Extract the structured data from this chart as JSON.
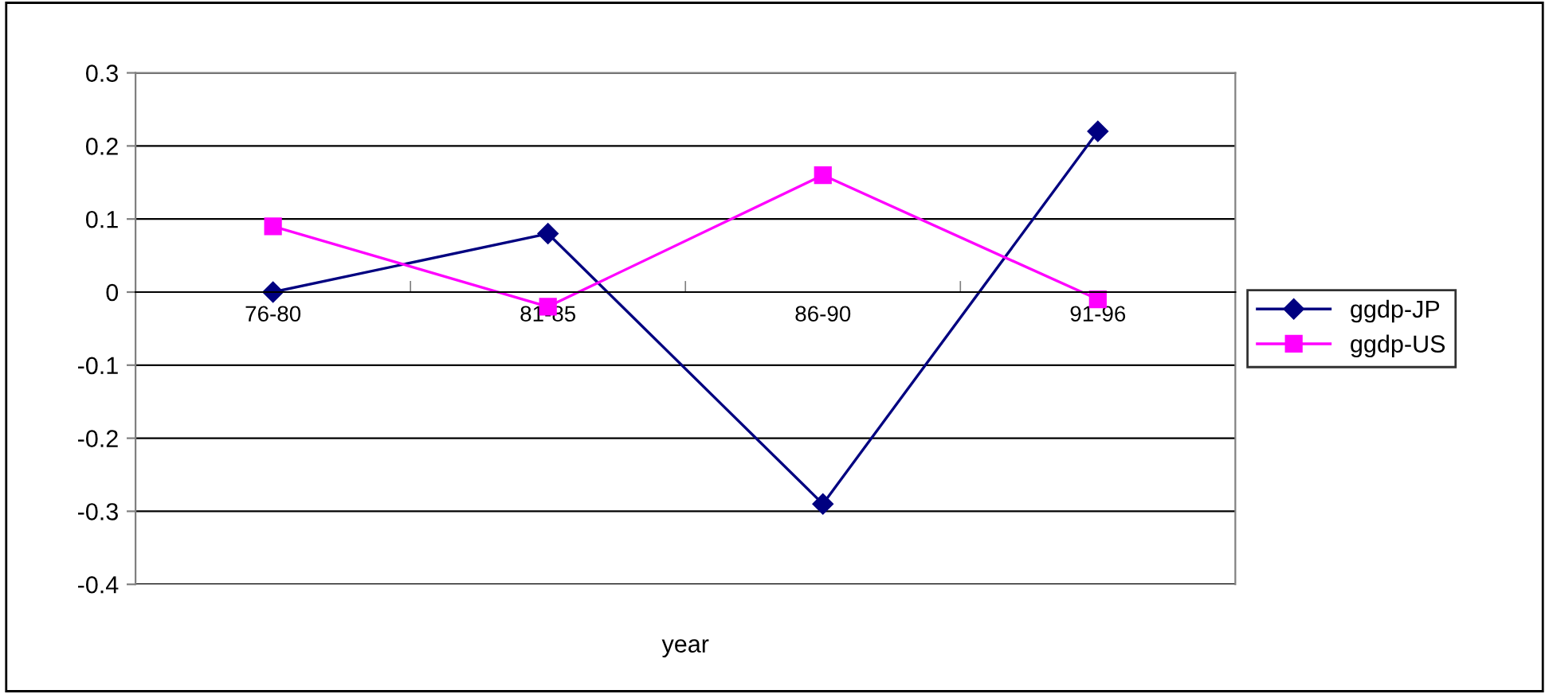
{
  "chart_data": {
    "type": "line",
    "xlabel": "year",
    "categories": [
      "76-80",
      "81-85",
      "86-90",
      "91-96"
    ],
    "series": [
      {
        "name": "ggdp-JP",
        "color": "#000080",
        "marker": "diamond",
        "values": [
          0,
          0.08,
          -0.29,
          0.22
        ]
      },
      {
        "name": "ggdp-US",
        "color": "#ff00ff",
        "marker": "square",
        "values": [
          0.09,
          -0.02,
          0.16,
          -0.01
        ]
      }
    ],
    "ylim": [
      -0.4,
      0.3
    ],
    "yticks": [
      {
        "value": -0.4,
        "label": "-0.4"
      },
      {
        "value": -0.3,
        "label": "-0.3"
      },
      {
        "value": -0.2,
        "label": "-0.2"
      },
      {
        "value": -0.1,
        "label": "-0.1"
      },
      0,
      0.1,
      0.2,
      0.3
    ],
    "grid": "y",
    "legend": "right"
  }
}
